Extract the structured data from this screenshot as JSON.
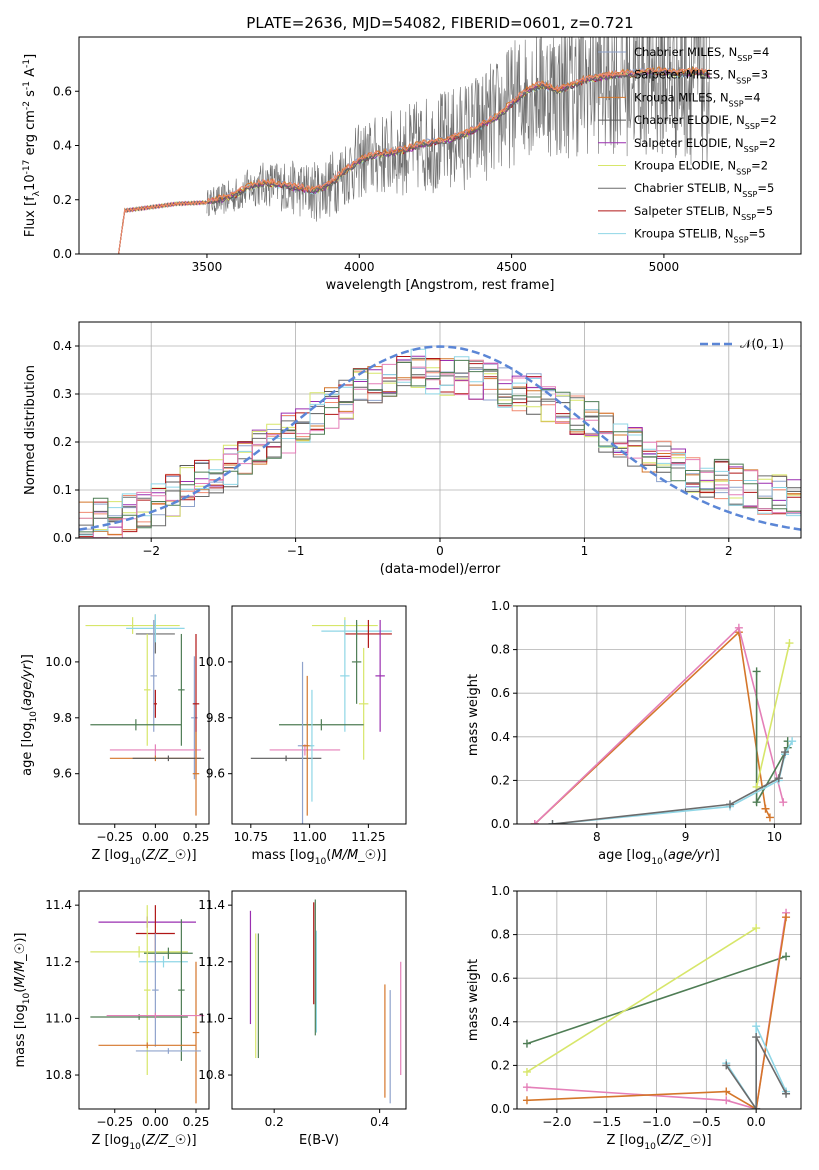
{
  "title": "PLATE=2636, MJD=54082, FIBERID=0601, z=0.721",
  "colors": {
    "Chabrier MILES": "#8fa3cc",
    "Salpeter MILES": "#f08a70",
    "Kroupa MILES": "#d4762a",
    "Chabrier ELODIE": "#5a5a5a",
    "Salpeter ELODIE": "#9a2fb0",
    "Kroupa ELODIE": "#d7e66a",
    "Chabrier STELIB": "#6b6b6b",
    "Salpeter STELIB": "#b01616",
    "Kroupa STELIB": "#8fd6e6",
    "pink": "#e47fb8",
    "green": "#4f7d55",
    "gaussian": "#5b86d6",
    "data": "#6e6e6e"
  },
  "chart_data": [
    {
      "type": "line",
      "xlabel": "wavelength [Angstrom, rest frame]",
      "ylabel": "Flux [f$_\\lambda$10$^{-17}$ erg cm$^{-2}$ s$^{-1}$ A$^{-1}$]",
      "xlim": [
        3080,
        5450
      ],
      "ylim": [
        0,
        0.8
      ],
      "xticks": [
        3500,
        4000,
        4500,
        5000
      ],
      "yticks": [
        0.0,
        0.2,
        0.4,
        0.6
      ],
      "legend": "right",
      "series": [
        {
          "name": "Chabrier MILES, N$_{SSP}$=4"
        },
        {
          "name": "Salpeter MILES, N$_{SSP}$=3"
        },
        {
          "name": "Kroupa MILES, N$_{SSP}$=4"
        },
        {
          "name": "Chabrier ELODIE, N$_{SSP}$=2"
        },
        {
          "name": "Salpeter ELODIE, N$_{SSP}$=2"
        },
        {
          "name": "Kroupa ELODIE, N$_{SSP}$=2"
        },
        {
          "name": "Chabrier STELIB, N$_{SSP}$=5"
        },
        {
          "name": "Salpeter STELIB, N$_{SSP}$=5"
        },
        {
          "name": "Kroupa STELIB, N$_{SSP}$=5"
        }
      ],
      "model_continuum": {
        "x": [
          3210,
          3230,
          3300,
          3400,
          3500,
          3550,
          3600,
          3650,
          3700,
          3750,
          3800,
          3850,
          3900,
          3950,
          4000,
          4050,
          4100,
          4150,
          4200,
          4250,
          4300,
          4350,
          4400,
          4450,
          4500,
          4550,
          4600,
          4650,
          4700,
          4750,
          4800,
          4850,
          4900,
          4950,
          5000,
          5050,
          5100,
          5150
        ],
        "y": [
          0.0,
          0.16,
          0.17,
          0.185,
          0.19,
          0.2,
          0.22,
          0.25,
          0.26,
          0.25,
          0.24,
          0.23,
          0.25,
          0.3,
          0.34,
          0.36,
          0.37,
          0.38,
          0.4,
          0.41,
          0.42,
          0.44,
          0.47,
          0.5,
          0.55,
          0.6,
          0.62,
          0.6,
          0.62,
          0.64,
          0.65,
          0.66,
          0.66,
          0.67,
          0.67,
          0.66,
          0.67,
          0.66
        ]
      },
      "data_range": [
        3500,
        5150
      ]
    },
    {
      "type": "histogram",
      "xlabel": "(data-model)/error",
      "ylabel": "Normed distribution",
      "xlim": [
        -2.5,
        2.5
      ],
      "ylim": [
        0,
        0.45
      ],
      "xticks": [
        -2,
        -1,
        0,
        1,
        2
      ],
      "yticks": [
        0.0,
        0.1,
        0.2,
        0.3,
        0.4
      ],
      "grid": true,
      "legend": "top-right",
      "gaussian_label": "$\\mathcal{N}(0,1)$",
      "bins": [
        -2.5,
        -2.4,
        -2.3,
        -2.2,
        -2.1,
        -2.0,
        -1.9,
        -1.8,
        -1.7,
        -1.6,
        -1.5,
        -1.4,
        -1.3,
        -1.2,
        -1.1,
        -1.0,
        -0.9,
        -0.8,
        -0.7,
        -0.6,
        -0.5,
        -0.4,
        -0.3,
        -0.2,
        -0.1,
        0.0,
        0.1,
        0.2,
        0.3,
        0.4,
        0.5,
        0.6,
        0.7,
        0.8,
        0.9,
        1.0,
        1.1,
        1.2,
        1.3,
        1.4,
        1.5,
        1.6,
        1.7,
        1.8,
        1.9,
        2.0,
        2.1,
        2.2,
        2.3,
        2.4,
        2.5
      ],
      "hist_base": [
        0.03,
        0.04,
        0.04,
        0.05,
        0.06,
        0.07,
        0.09,
        0.11,
        0.12,
        0.13,
        0.15,
        0.17,
        0.19,
        0.2,
        0.22,
        0.24,
        0.26,
        0.27,
        0.29,
        0.31,
        0.32,
        0.33,
        0.34,
        0.35,
        0.34,
        0.33,
        0.34,
        0.33,
        0.32,
        0.31,
        0.3,
        0.3,
        0.28,
        0.27,
        0.26,
        0.24,
        0.22,
        0.21,
        0.19,
        0.18,
        0.16,
        0.15,
        0.14,
        0.13,
        0.12,
        0.11,
        0.1,
        0.09,
        0.09,
        0.08
      ]
    },
    {
      "type": "scatter",
      "xlabel": "Z [log$_{10}$($Z/Z_\\odot$)]",
      "ylabel": "age  [log$_{10}$($age/yr$)]",
      "xlim": [
        -0.47,
        0.33
      ],
      "ylim": [
        9.42,
        10.2
      ],
      "xticks": [
        -0.25,
        0.0,
        0.25
      ],
      "yticks": [
        9.6,
        9.8,
        10.0
      ],
      "points": [
        {
          "x": -0.14,
          "y": 10.13,
          "xerr": 0.29,
          "yerr": 0.03,
          "c": "Kroupa ELODIE"
        },
        {
          "x": 0.0,
          "y": 10.1,
          "xerr": 0.12,
          "yerr": 0.07,
          "c": "Chabrier STELIB"
        },
        {
          "x": 0.0,
          "y": 10.12,
          "xerr": 0.18,
          "yerr": 0.05,
          "c": "Kroupa STELIB"
        },
        {
          "x": -0.01,
          "y": 9.95,
          "xerr": 0.02,
          "yerr": 0.2,
          "c": "Chabrier MILES"
        },
        {
          "x": -0.05,
          "y": 9.9,
          "xerr": 0.02,
          "yerr": 0.2,
          "c": "Kroupa ELODIE"
        },
        {
          "x": 0.0,
          "y": 9.85,
          "xerr": 0.01,
          "yerr": 0.05,
          "c": "Salpeter STELIB"
        },
        {
          "x": 0.16,
          "y": 9.9,
          "xerr": 0.02,
          "yerr": 0.2,
          "c": "green"
        },
        {
          "x": 0.24,
          "y": 9.8,
          "xerr": 0.02,
          "yerr": 0.22,
          "c": "Chabrier MILES"
        },
        {
          "x": 0.25,
          "y": 9.85,
          "xerr": 0.02,
          "yerr": 0.25,
          "c": "Salpeter STELIB"
        },
        {
          "x": -0.12,
          "y": 9.775,
          "xerr": 0.28,
          "yerr": 0.02,
          "c": "green"
        },
        {
          "x": 0.0,
          "y": 9.685,
          "xerr": 0.28,
          "yerr": 0.02,
          "c": "pink"
        },
        {
          "x": 0.0,
          "y": 9.655,
          "xerr": 0.28,
          "yerr": 0.01,
          "c": "Kroupa MILES"
        },
        {
          "x": 0.08,
          "y": 9.655,
          "xerr": 0.22,
          "yerr": 0.01,
          "c": "Chabrier ELODIE"
        },
        {
          "x": 0.25,
          "y": 9.6,
          "xerr": 0.02,
          "yerr": 0.15,
          "c": "Kroupa MILES"
        }
      ]
    },
    {
      "type": "scatter",
      "xlabel": "mass [log$_{10}$($M/M_\\odot$)]",
      "ylabel": "",
      "xlim": [
        10.67,
        11.41
      ],
      "ylim": [
        9.42,
        10.2
      ],
      "xticks": [
        10.75,
        11.0,
        11.25
      ],
      "yticks": [
        9.6,
        9.8,
        10.0
      ],
      "points": [
        {
          "x": 11.15,
          "y": 10.13,
          "xerr": 0.14,
          "yerr": 0.03,
          "c": "Kroupa ELODIE"
        },
        {
          "x": 11.2,
          "y": 10.11,
          "xerr": 0.15,
          "yerr": 0.03,
          "c": "Kroupa STELIB"
        },
        {
          "x": 11.25,
          "y": 10.1,
          "xerr": 0.1,
          "yerr": 0.05,
          "c": "Salpeter STELIB"
        },
        {
          "x": 11.2,
          "y": 10.0,
          "xerr": 0.02,
          "yerr": 0.15,
          "c": "green"
        },
        {
          "x": 11.3,
          "y": 9.95,
          "xerr": 0.02,
          "yerr": 0.2,
          "c": "Salpeter ELODIE"
        },
        {
          "x": 11.23,
          "y": 9.85,
          "xerr": 0.02,
          "yerr": 0.2,
          "c": "Kroupa ELODIE"
        },
        {
          "x": 11.15,
          "y": 9.95,
          "xerr": 0.02,
          "yerr": 0.2,
          "c": "Kroupa STELIB"
        },
        {
          "x": 11.05,
          "y": 9.775,
          "xerr": 0.18,
          "yerr": 0.02,
          "c": "green"
        },
        {
          "x": 10.98,
          "y": 9.685,
          "xerr": 0.15,
          "yerr": 0.02,
          "c": "pink"
        },
        {
          "x": 10.9,
          "y": 9.655,
          "xerr": 0.15,
          "yerr": 0.01,
          "c": "Chabrier ELODIE"
        },
        {
          "x": 10.97,
          "y": 9.7,
          "xerr": 0.02,
          "yerr": 0.3,
          "c": "Chabrier MILES"
        },
        {
          "x": 10.99,
          "y": 9.7,
          "xerr": 0.02,
          "yerr": 0.25,
          "c": "Kroupa MILES"
        },
        {
          "x": 11.01,
          "y": 9.7,
          "xerr": 0.01,
          "yerr": 0.2,
          "c": "Kroupa STELIB"
        }
      ]
    },
    {
      "type": "line",
      "xlabel": "age  [log$_{10}$($age/yr$)]",
      "ylabel": "mass weight",
      "xlim": [
        7.1,
        10.3
      ],
      "ylim": [
        0,
        1.0
      ],
      "xticks": [
        8,
        9,
        10
      ],
      "yticks": [
        0.0,
        0.2,
        0.4,
        0.6,
        0.8,
        1.0
      ],
      "grid": true,
      "series": [
        {
          "c": "Kroupa MILES",
          "x": [
            7.3,
            9.6,
            9.9,
            9.95
          ],
          "y": [
            0.0,
            0.88,
            0.07,
            0.03
          ]
        },
        {
          "c": "pink",
          "x": [
            7.3,
            9.6,
            10.1
          ],
          "y": [
            0.0,
            0.9,
            0.1
          ]
        },
        {
          "c": "green",
          "x": [
            9.8,
            9.8,
            10.15,
            10.15
          ],
          "y": [
            0.7,
            0.1,
            0.35,
            0.38
          ]
        },
        {
          "c": "Kroupa ELODIE",
          "x": [
            9.8,
            10.17
          ],
          "y": [
            0.17,
            0.83
          ]
        },
        {
          "c": "Kroupa STELIB",
          "x": [
            7.5,
            9.5,
            10.05,
            10.12,
            10.2
          ],
          "y": [
            0.0,
            0.08,
            0.2,
            0.32,
            0.38
          ]
        },
        {
          "c": "Chabrier STELIB",
          "x": [
            7.5,
            9.5,
            10.05,
            10.12
          ],
          "y": [
            0.0,
            0.09,
            0.21,
            0.33
          ]
        }
      ]
    },
    {
      "type": "scatter",
      "xlabel": "Z [log$_{10}$($Z/Z_\\odot$)]",
      "ylabel": "mass [log$_{10}$($M/M_\\odot$)]",
      "xlim": [
        -0.47,
        0.33
      ],
      "ylim": [
        10.68,
        11.45
      ],
      "xticks": [
        -0.25,
        0.0,
        0.25
      ],
      "yticks": [
        10.8,
        11.0,
        11.2,
        11.4
      ],
      "points": [
        {
          "x": -0.05,
          "y": 11.34,
          "xerr": 0.3,
          "yerr": 0.02,
          "c": "Salpeter ELODIE"
        },
        {
          "x": 0.0,
          "y": 11.3,
          "xerr": 0.12,
          "yerr": 0.1,
          "c": "Salpeter STELIB"
        },
        {
          "x": -0.1,
          "y": 11.235,
          "xerr": 0.3,
          "yerr": 0.02,
          "c": "Kroupa ELODIE"
        },
        {
          "x": 0.08,
          "y": 11.23,
          "xerr": 0.15,
          "yerr": 0.02,
          "c": "green"
        },
        {
          "x": 0.05,
          "y": 11.2,
          "xerr": 0.15,
          "yerr": 0.02,
          "c": "Kroupa STELIB"
        },
        {
          "x": -0.05,
          "y": 11.1,
          "xerr": 0.02,
          "yerr": 0.3,
          "c": "Kroupa ELODIE"
        },
        {
          "x": 0.0,
          "y": 11.1,
          "xerr": 0.02,
          "yerr": 0.2,
          "c": "Chabrier MILES"
        },
        {
          "x": 0.16,
          "y": 11.1,
          "xerr": 0.02,
          "yerr": 0.25,
          "c": "green"
        },
        {
          "x": 0.25,
          "y": 10.95,
          "xerr": 0.02,
          "yerr": 0.25,
          "c": "Kroupa MILES"
        },
        {
          "x": -0.1,
          "y": 11.005,
          "xerr": 0.3,
          "yerr": 0.01,
          "c": "green"
        },
        {
          "x": 0.0,
          "y": 11.01,
          "xerr": 0.3,
          "yerr": 0.01,
          "c": "pink"
        },
        {
          "x": -0.05,
          "y": 10.905,
          "xerr": 0.3,
          "yerr": 0.01,
          "c": "Kroupa MILES"
        },
        {
          "x": 0.08,
          "y": 10.885,
          "xerr": 0.2,
          "yerr": 0.01,
          "c": "Chabrier MILES"
        }
      ]
    },
    {
      "type": "scatter",
      "xlabel": "E(B-V)",
      "ylabel": "",
      "xlim": [
        0.12,
        0.45
      ],
      "ylim": [
        10.68,
        11.45
      ],
      "xticks": [
        0.2,
        0.4
      ],
      "yticks": [
        10.8,
        11.0,
        11.2,
        11.4
      ],
      "points": [
        {
          "x": 0.155,
          "y": 11.18,
          "xerr": 0,
          "yerr": 0.2,
          "c": "Salpeter ELODIE"
        },
        {
          "x": 0.165,
          "y": 11.08,
          "xerr": 0,
          "yerr": 0.22,
          "c": "Kroupa ELODIE"
        },
        {
          "x": 0.17,
          "y": 11.08,
          "xerr": 0,
          "yerr": 0.22,
          "c": "green"
        },
        {
          "x": 0.275,
          "y": 11.23,
          "xerr": 0,
          "yerr": 0.18,
          "c": "Salpeter STELIB"
        },
        {
          "x": 0.28,
          "y": 11.13,
          "xerr": 0,
          "yerr": 0.18,
          "c": "Kroupa STELIB"
        },
        {
          "x": 0.278,
          "y": 11.18,
          "xerr": 0,
          "yerr": 0.24,
          "c": "green"
        },
        {
          "x": 0.41,
          "y": 10.92,
          "xerr": 0,
          "yerr": 0.2,
          "c": "Kroupa MILES"
        },
        {
          "x": 0.42,
          "y": 10.9,
          "xerr": 0,
          "yerr": 0.2,
          "c": "Chabrier MILES"
        },
        {
          "x": 0.44,
          "y": 11.0,
          "xerr": 0,
          "yerr": 0.2,
          "c": "pink"
        }
      ]
    },
    {
      "type": "line",
      "xlabel": "Z [log$_{10}$($Z/Z_\\odot$)]",
      "ylabel": "mass weight",
      "xlim": [
        -2.4,
        0.45
      ],
      "ylim": [
        0,
        1.0
      ],
      "xticks": [
        -2.0,
        -1.5,
        -1.0,
        -0.5,
        0.0
      ],
      "yticks": [
        0.0,
        0.2,
        0.4,
        0.6,
        0.8,
        1.0
      ],
      "grid": true,
      "series": [
        {
          "c": "green",
          "x": [
            -2.3,
            0.3
          ],
          "y": [
            0.3,
            0.7
          ]
        },
        {
          "c": "Kroupa ELODIE",
          "x": [
            -2.3,
            0.0
          ],
          "y": [
            0.17,
            0.83
          ]
        },
        {
          "c": "pink",
          "x": [
            -2.3,
            -0.3,
            0.0,
            0.3
          ],
          "y": [
            0.1,
            0.04,
            0.0,
            0.9
          ]
        },
        {
          "c": "Kroupa MILES",
          "x": [
            -2.3,
            -0.3,
            0.0,
            0.3
          ],
          "y": [
            0.04,
            0.08,
            0.0,
            0.88
          ]
        },
        {
          "c": "Kroupa STELIB",
          "x": [
            -0.3,
            0.0,
            0.0,
            0.3
          ],
          "y": [
            0.21,
            0.0,
            0.38,
            0.08
          ]
        },
        {
          "c": "Chabrier STELIB",
          "x": [
            -0.3,
            0.0,
            0.0,
            0.3
          ],
          "y": [
            0.2,
            0.0,
            0.33,
            0.07
          ]
        }
      ]
    }
  ]
}
